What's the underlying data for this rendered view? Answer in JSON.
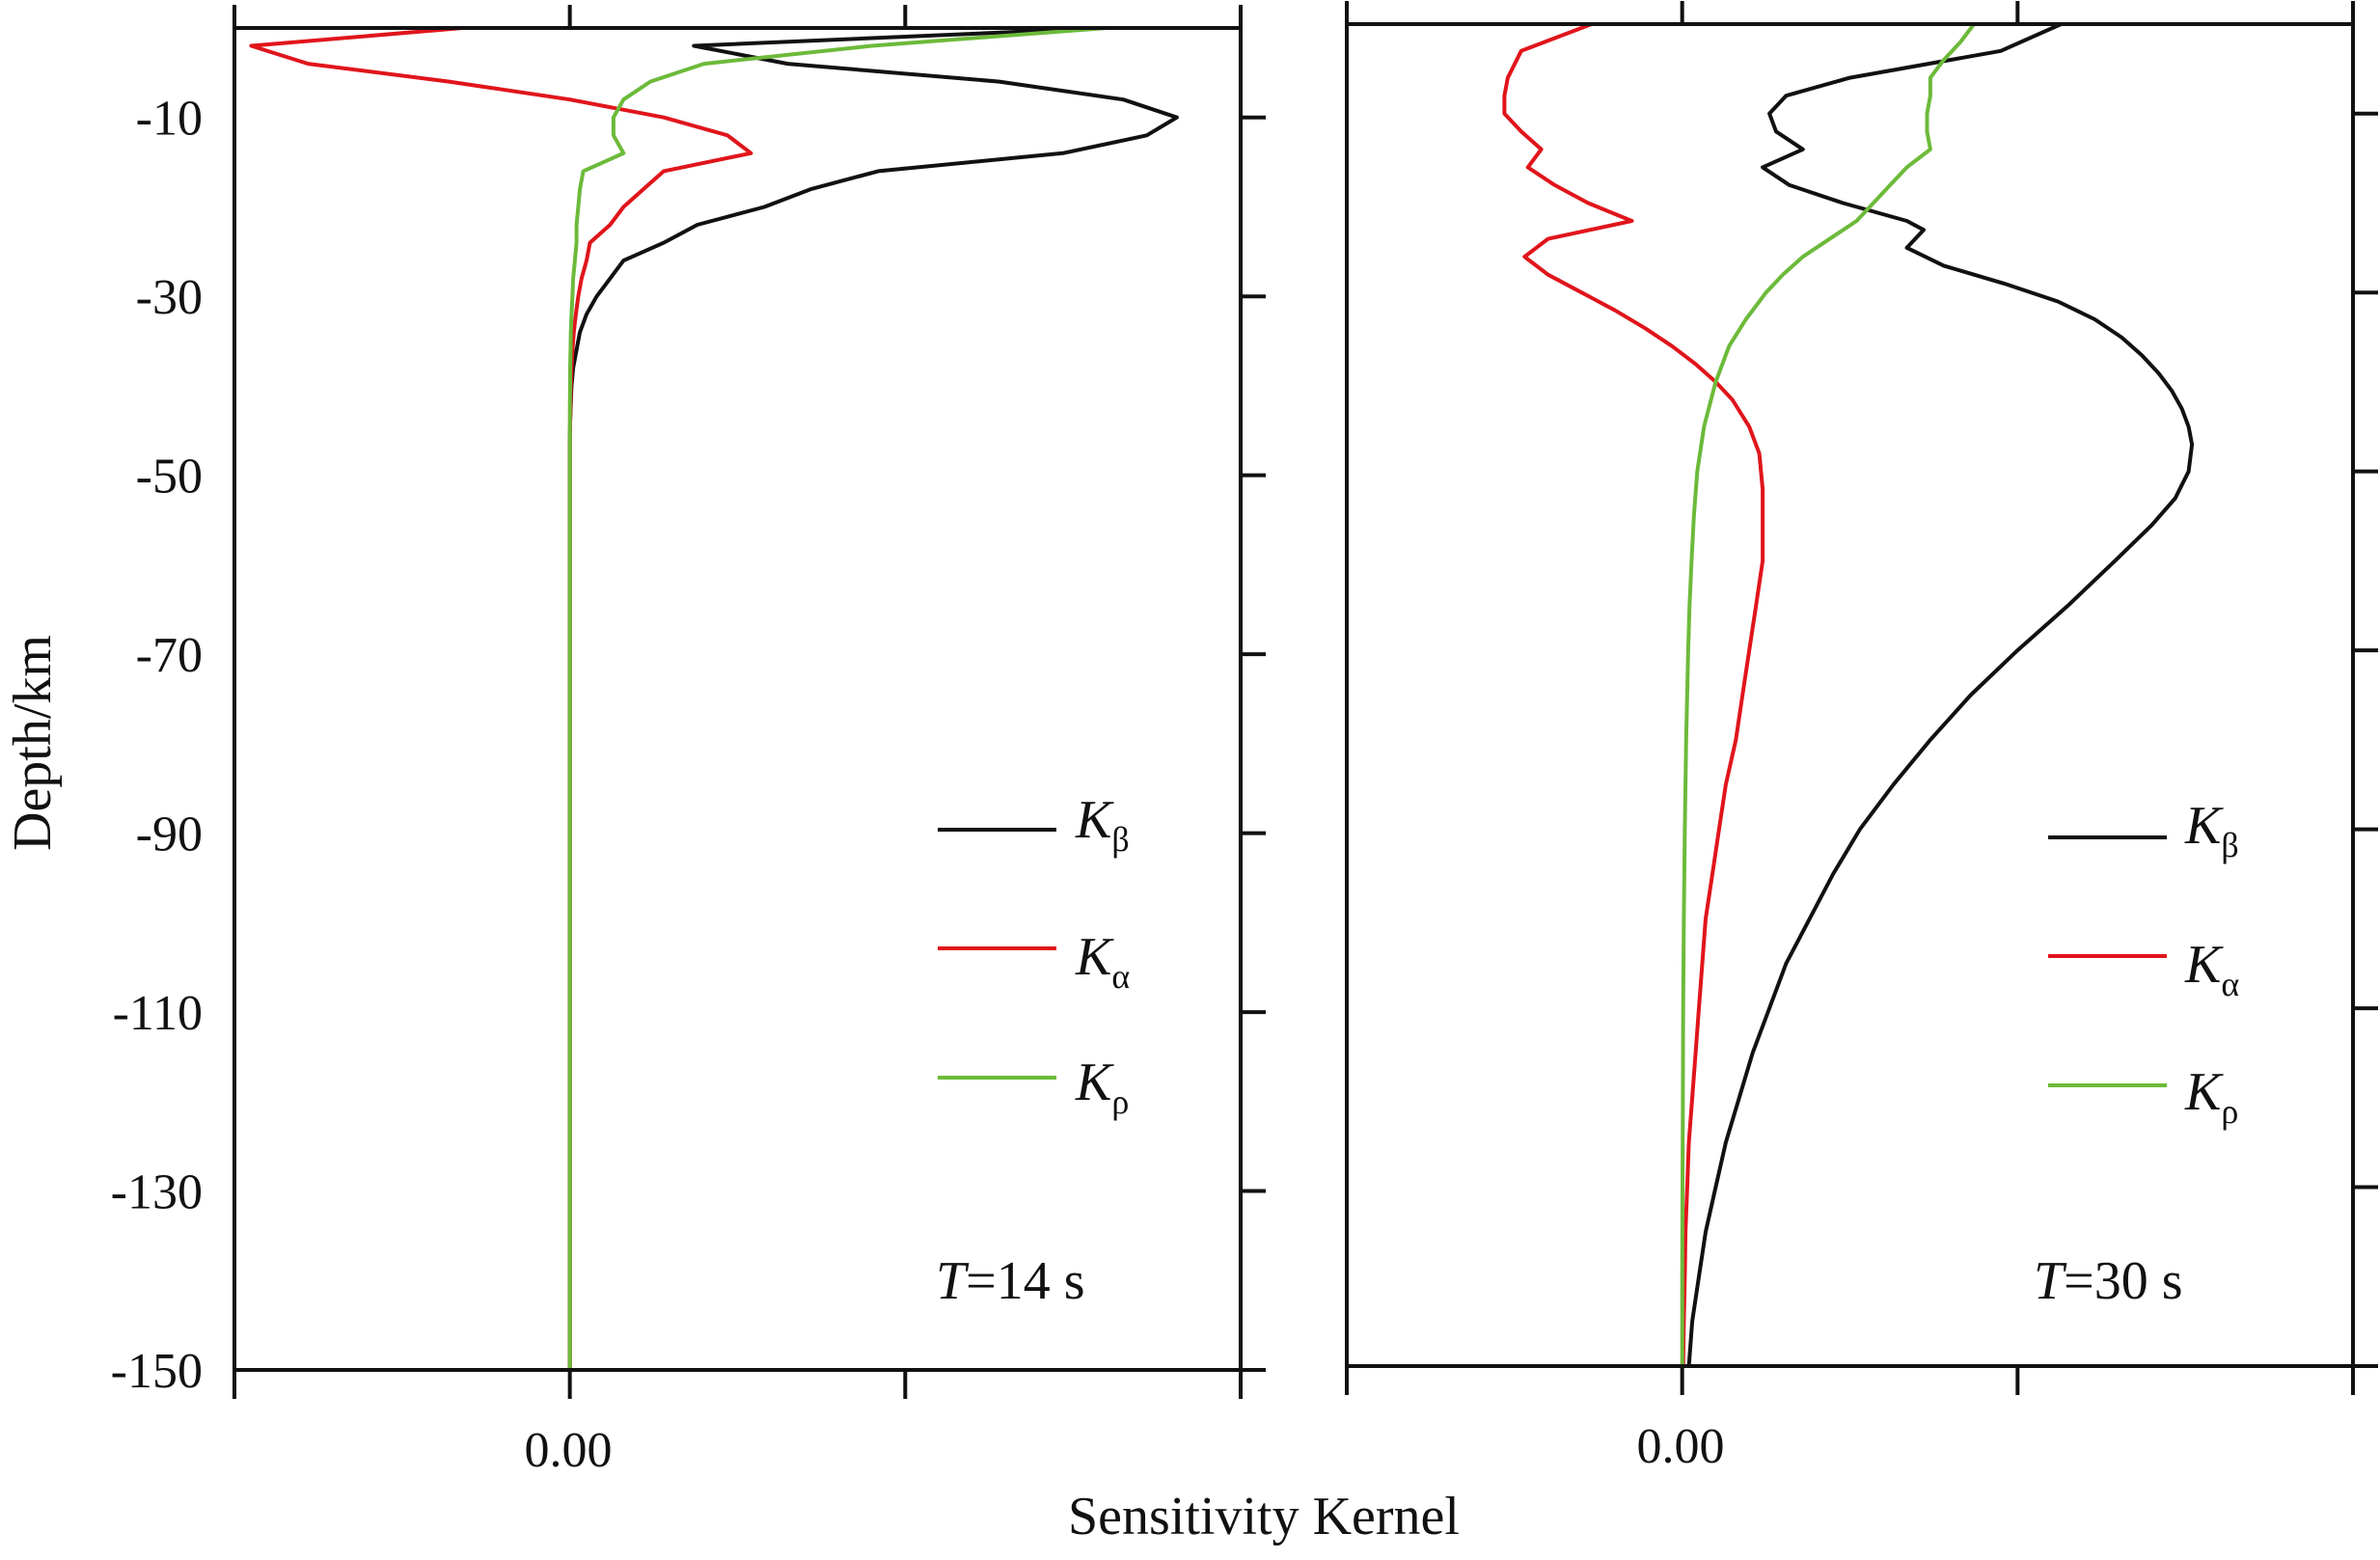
{
  "chart_data": {
    "type": "line",
    "xlabel": "Sensitivity Kernel",
    "ylabel": "Depth/km",
    "ylim": [
      -150,
      0
    ],
    "yticks": [
      -10,
      -30,
      -50,
      -70,
      -90,
      -110,
      -130,
      -150
    ],
    "ytick_labels": [
      "-10",
      "-30",
      "-50",
      "-70",
      "-90",
      "-110",
      "-130",
      "-150"
    ],
    "x_ticks": [
      -1,
      0,
      1,
      2
    ],
    "xtick_label_zero": "0.00",
    "legend_position": "lower-right",
    "colors": {
      "K_beta": "#111111",
      "K_alpha": "#e0151b",
      "K_rho": "#6cba3a"
    },
    "panels": [
      {
        "period_prefix": "T",
        "period_value": "=14 s",
        "xlim": [
          -1,
          2
        ],
        "legend": [
          {
            "key": "K_beta",
            "base": "K",
            "sub": "β"
          },
          {
            "key": "K_alpha",
            "base": "K",
            "sub": "α"
          },
          {
            "key": "K_rho",
            "base": "K",
            "sub": "ρ"
          }
        ],
        "series": [
          {
            "name": "K_beta",
            "depth": [
              0,
              -2,
              -4,
              -6,
              -8,
              -10,
              -12,
              -14,
              -16,
              -18,
              -20,
              -22,
              -24,
              -26,
              -28,
              -30,
              -32,
              -34,
              -36,
              -38,
              -40,
              -42,
              -44,
              -46,
              -150
            ],
            "value": [
              1.6,
              0.37,
              0.65,
              1.28,
              1.65,
              1.81,
              1.72,
              1.47,
              0.92,
              0.72,
              0.58,
              0.38,
              0.28,
              0.16,
              0.12,
              0.08,
              0.05,
              0.03,
              0.02,
              0.01,
              0.005,
              0.003,
              0.001,
              0,
              0
            ]
          },
          {
            "name": "K_alpha",
            "depth": [
              0,
              -2,
              -4,
              -6,
              -8,
              -10,
              -12,
              -14,
              -16,
              -18,
              -20,
              -22,
              -24,
              -26,
              -28,
              -30,
              -32,
              -34,
              -36,
              -38,
              -40,
              -42,
              -44,
              -46,
              -150
            ],
            "value": [
              -0.32,
              -0.95,
              -0.78,
              -0.36,
              0.0,
              0.28,
              0.47,
              0.54,
              0.28,
              0.22,
              0.16,
              0.12,
              0.06,
              0.05,
              0.035,
              0.025,
              0.018,
              0.012,
              0.008,
              0.005,
              0.003,
              0.002,
              0.001,
              0,
              0
            ]
          },
          {
            "name": "K_rho",
            "depth": [
              0,
              -2,
              -4,
              -6,
              -8,
              -10,
              -12,
              -14,
              -16,
              -18,
              -20,
              -22,
              -24,
              -26,
              -28,
              -30,
              -32,
              -34,
              -36,
              -38,
              -40,
              -42,
              -44,
              -46,
              -150
            ],
            "value": [
              1.6,
              0.9,
              0.4,
              0.24,
              0.16,
              0.13,
              0.13,
              0.16,
              0.04,
              0.03,
              0.025,
              0.02,
              0.02,
              0.015,
              0.01,
              0.008,
              0.005,
              0.003,
              0.002,
              0.001,
              0.001,
              0.0,
              0,
              0,
              0
            ]
          }
        ]
      },
      {
        "period_prefix": "T",
        "period_value": "=30 s",
        "xlim": [
          -1,
          2
        ],
        "legend": [
          {
            "key": "K_beta",
            "base": "K",
            "sub": "β"
          },
          {
            "key": "K_alpha",
            "base": "K",
            "sub": "α"
          },
          {
            "key": "K_rho",
            "base": "K",
            "sub": "ρ"
          }
        ],
        "series": [
          {
            "name": "K_beta",
            "depth": [
              0,
              -3,
              -6,
              -8,
              -10,
              -12,
              -14,
              -16,
              -18,
              -20,
              -22,
              -23,
              -25,
              -27,
              -29,
              -31,
              -33,
              -35,
              -37,
              -39,
              -41,
              -43,
              -45,
              -47,
              -50,
              -53,
              -56,
              -60,
              -65,
              -70,
              -75,
              -80,
              -85,
              -90,
              -95,
              -100,
              -105,
              -110,
              -115,
              -120,
              -125,
              -130,
              -135,
              -140,
              -145,
              -150
            ],
            "value": [
              1.13,
              0.95,
              0.5,
              0.31,
              0.26,
              0.28,
              0.36,
              0.24,
              0.32,
              0.48,
              0.67,
              0.72,
              0.67,
              0.78,
              0.96,
              1.12,
              1.23,
              1.31,
              1.37,
              1.42,
              1.46,
              1.49,
              1.51,
              1.52,
              1.51,
              1.47,
              1.4,
              1.29,
              1.15,
              1.0,
              0.86,
              0.74,
              0.63,
              0.53,
              0.45,
              0.38,
              0.31,
              0.26,
              0.21,
              0.17,
              0.13,
              0.1,
              0.07,
              0.05,
              0.03,
              0.02
            ]
          },
          {
            "name": "K_alpha",
            "depth": [
              0,
              -3,
              -6,
              -8,
              -10,
              -12,
              -14,
              -16,
              -18,
              -20,
              -22,
              -24,
              -26,
              -28,
              -30,
              -32,
              -34,
              -36,
              -38,
              -40,
              -42,
              -45,
              -48,
              -52,
              -56,
              -60,
              -65,
              -70,
              -75,
              -80,
              -85,
              -90,
              -95,
              -100,
              -105,
              -110,
              -115,
              -120,
              -125,
              -130,
              -135,
              -140,
              -145,
              -150
            ],
            "value": [
              -0.27,
              -0.48,
              -0.52,
              -0.53,
              -0.53,
              -0.48,
              -0.42,
              -0.46,
              -0.38,
              -0.28,
              -0.15,
              -0.4,
              -0.47,
              -0.4,
              -0.3,
              -0.2,
              -0.11,
              -0.03,
              0.04,
              0.1,
              0.15,
              0.2,
              0.23,
              0.24,
              0.24,
              0.24,
              0.22,
              0.2,
              0.18,
              0.16,
              0.13,
              0.11,
              0.09,
              0.07,
              0.06,
              0.05,
              0.04,
              0.03,
              0.02,
              0.015,
              0.01,
              0.008,
              0.005,
              0.003
            ]
          },
          {
            "name": "K_rho",
            "depth": [
              0,
              -2,
              -4,
              -6,
              -8,
              -10,
              -12,
              -14,
              -16,
              -18,
              -20,
              -22,
              -24,
              -26,
              -28,
              -30,
              -33,
              -36,
              -40,
              -45,
              -50,
              -55,
              -60,
              -65,
              -70,
              -80,
              -90,
              -100,
              -110,
              -120,
              -130,
              -140,
              -150
            ],
            "value": [
              0.87,
              0.83,
              0.78,
              0.74,
              0.74,
              0.73,
              0.73,
              0.74,
              0.67,
              0.62,
              0.57,
              0.52,
              0.44,
              0.36,
              0.3,
              0.25,
              0.19,
              0.14,
              0.1,
              0.065,
              0.045,
              0.035,
              0.028,
              0.022,
              0.018,
              0.012,
              0.008,
              0.005,
              0.003,
              0.002,
              0.001,
              0.0,
              0.0
            ]
          }
        ]
      }
    ]
  }
}
